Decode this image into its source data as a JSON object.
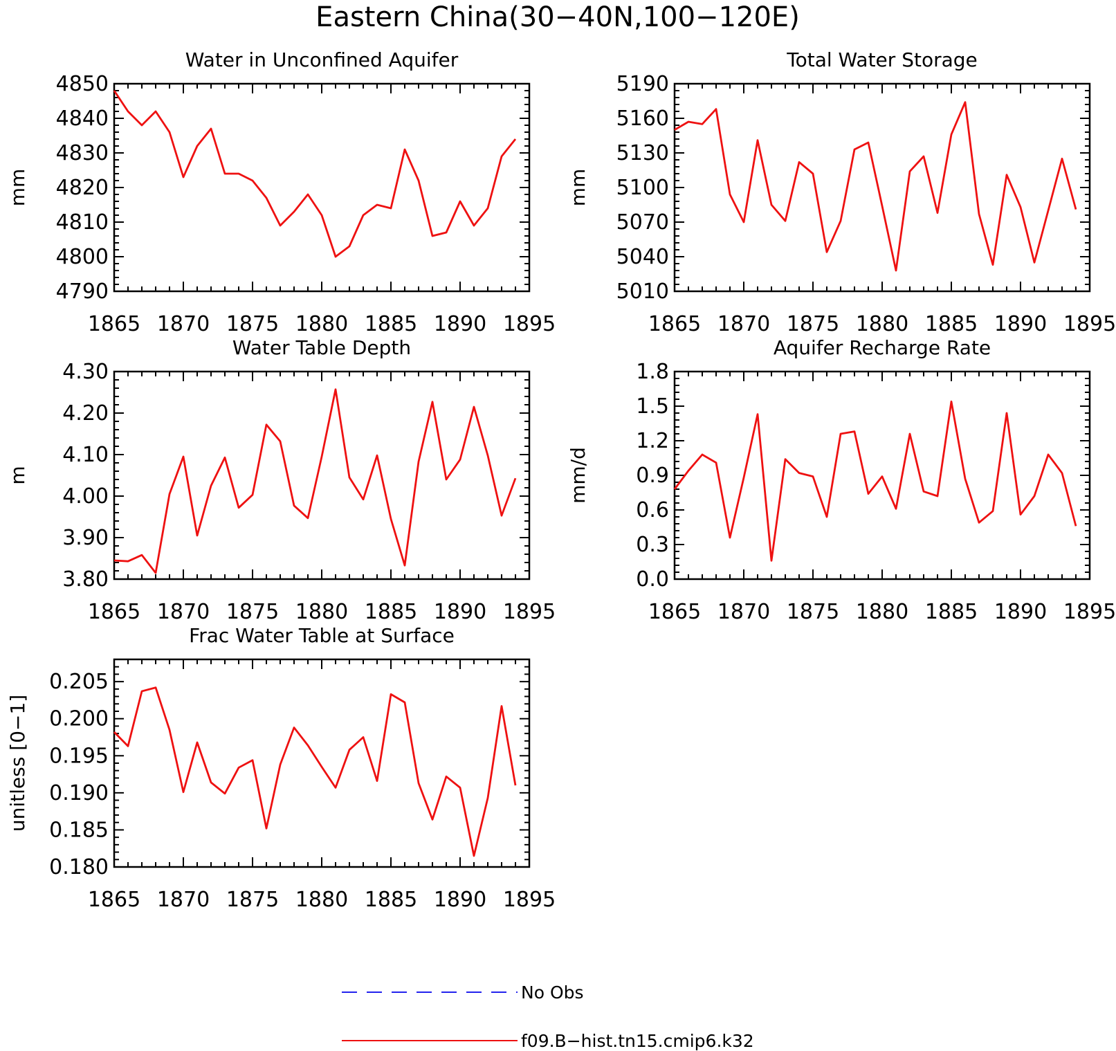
{
  "figure": {
    "title": "Eastern China(30−40N,100−120E)"
  },
  "legend": {
    "placement": "bottom-center",
    "entries": [
      {
        "label": "No Obs",
        "color": "#2222ee",
        "style": "dashed"
      },
      {
        "label": "f09.B−hist.tn15.cmip6.k32",
        "color": "#ee1111",
        "style": "solid"
      }
    ]
  },
  "colors": {
    "series": "#ee1111",
    "obs": "#2222ee",
    "axis": "#000000"
  },
  "chart_data": [
    {
      "type": "line",
      "title": "Water in Unconfined Aquifer",
      "ylabel": "mm",
      "xlabel": "",
      "xlim": [
        1865,
        1895
      ],
      "ylim": [
        4790,
        4850
      ],
      "xticks": [
        "1865",
        "1870",
        "1875",
        "1880",
        "1885",
        "1890",
        "1895"
      ],
      "yticks": [
        "4790",
        "4800",
        "4810",
        "4820",
        "4830",
        "4840",
        "4850"
      ],
      "x": [
        1865,
        1866,
        1867,
        1868,
        1869,
        1870,
        1871,
        1872,
        1873,
        1874,
        1875,
        1876,
        1877,
        1878,
        1879,
        1880,
        1881,
        1882,
        1883,
        1884,
        1885,
        1886,
        1887,
        1888,
        1889,
        1890,
        1891,
        1892,
        1893,
        1894
      ],
      "series": [
        {
          "name": "f09.B−hist.tn15.cmip6.k32",
          "values": [
            4848,
            4842,
            4838,
            4842,
            4836,
            4823,
            4832,
            4837,
            4824,
            4824,
            4822,
            4817,
            4809,
            4813,
            4818,
            4812,
            4800,
            4803,
            4812,
            4815,
            4814,
            4831,
            4822,
            4806,
            4807,
            4816,
            4809,
            4814,
            4829,
            4834
          ]
        }
      ]
    },
    {
      "type": "line",
      "title": "Total Water Storage",
      "ylabel": "mm",
      "xlabel": "",
      "xlim": [
        1865,
        1895
      ],
      "ylim": [
        5010,
        5190
      ],
      "xticks": [
        "1865",
        "1870",
        "1875",
        "1880",
        "1885",
        "1890",
        "1895"
      ],
      "yticks": [
        "5010",
        "5040",
        "5070",
        "5100",
        "5130",
        "5160",
        "5190"
      ],
      "x": [
        1865,
        1866,
        1867,
        1868,
        1869,
        1870,
        1871,
        1872,
        1873,
        1874,
        1875,
        1876,
        1877,
        1878,
        1879,
        1880,
        1881,
        1882,
        1883,
        1884,
        1885,
        1886,
        1887,
        1888,
        1889,
        1890,
        1891,
        1892,
        1893,
        1894
      ],
      "series": [
        {
          "name": "f09.B−hist.tn15.cmip6.k32",
          "values": [
            5150,
            5157,
            5155,
            5168,
            5094,
            5070,
            5141,
            5085,
            5071,
            5122,
            5112,
            5044,
            5071,
            5133,
            5139,
            5084,
            5028,
            5114,
            5127,
            5078,
            5146,
            5174,
            5077,
            5033,
            5111,
            5083,
            5035,
            5080,
            5125,
            5081
          ]
        }
      ]
    },
    {
      "type": "line",
      "title": "Water Table Depth",
      "ylabel": "m",
      "xlabel": "",
      "xlim": [
        1865,
        1895
      ],
      "ylim": [
        3.8,
        4.3
      ],
      "xticks": [
        "1865",
        "1870",
        "1875",
        "1880",
        "1885",
        "1890",
        "1895"
      ],
      "yticks": [
        "3.80",
        "3.90",
        "4.00",
        "4.10",
        "4.20",
        "4.30"
      ],
      "x": [
        1865,
        1866,
        1867,
        1868,
        1869,
        1870,
        1871,
        1872,
        1873,
        1874,
        1875,
        1876,
        1877,
        1878,
        1879,
        1880,
        1881,
        1882,
        1883,
        1884,
        1885,
        1886,
        1887,
        1888,
        1889,
        1890,
        1891,
        1892,
        1893,
        1894
      ],
      "series": [
        {
          "name": "f09.B−hist.tn15.cmip6.k32",
          "values": [
            3.845,
            3.843,
            3.858,
            3.815,
            4.005,
            4.095,
            3.905,
            4.025,
            4.093,
            3.972,
            4.003,
            4.172,
            4.132,
            3.977,
            3.947,
            4.095,
            4.257,
            4.045,
            3.992,
            4.098,
            3.945,
            3.833,
            4.083,
            4.227,
            4.04,
            4.088,
            4.215,
            4.098,
            3.953,
            4.043
          ]
        }
      ]
    },
    {
      "type": "line",
      "title": "Aquifer Recharge Rate",
      "ylabel": "mm/d",
      "xlabel": "",
      "xlim": [
        1865,
        1895
      ],
      "ylim": [
        0.0,
        1.8
      ],
      "xticks": [
        "1865",
        "1870",
        "1875",
        "1880",
        "1885",
        "1890",
        "1895"
      ],
      "yticks": [
        "0.0",
        "0.3",
        "0.6",
        "0.9",
        "1.2",
        "1.5",
        "1.8"
      ],
      "x": [
        1865,
        1866,
        1867,
        1868,
        1869,
        1870,
        1871,
        1872,
        1873,
        1874,
        1875,
        1876,
        1877,
        1878,
        1879,
        1880,
        1881,
        1882,
        1883,
        1884,
        1885,
        1886,
        1887,
        1888,
        1889,
        1890,
        1891,
        1892,
        1893,
        1894
      ],
      "series": [
        {
          "name": "f09.B−hist.tn15.cmip6.k32",
          "values": [
            0.78,
            0.94,
            1.08,
            1.01,
            0.36,
            0.88,
            1.43,
            0.16,
            1.04,
            0.92,
            0.89,
            0.54,
            1.26,
            1.28,
            0.74,
            0.89,
            0.61,
            1.26,
            0.76,
            0.72,
            1.54,
            0.87,
            0.49,
            0.59,
            1.44,
            0.56,
            0.72,
            1.08,
            0.92,
            0.46
          ]
        }
      ]
    },
    {
      "type": "line",
      "title": "Frac Water Table at Surface",
      "ylabel": "unitless [0−1]",
      "xlabel": "",
      "xlim": [
        1865,
        1895
      ],
      "ylim": [
        0.18,
        0.208
      ],
      "xticks": [
        "1865",
        "1870",
        "1875",
        "1880",
        "1885",
        "1890",
        "1895"
      ],
      "yticks": [
        "0.180",
        "0.185",
        "0.190",
        "0.195",
        "0.200",
        "0.205"
      ],
      "x": [
        1865,
        1866,
        1867,
        1868,
        1869,
        1870,
        1871,
        1872,
        1873,
        1874,
        1875,
        1876,
        1877,
        1878,
        1879,
        1880,
        1881,
        1882,
        1883,
        1884,
        1885,
        1886,
        1887,
        1888,
        1889,
        1890,
        1891,
        1892,
        1893,
        1894
      ],
      "series": [
        {
          "name": "f09.B−hist.tn15.cmip6.k32",
          "values": [
            0.1982,
            0.1963,
            0.2037,
            0.2042,
            0.1985,
            0.1901,
            0.1968,
            0.1914,
            0.1899,
            0.1934,
            0.1944,
            0.1852,
            0.1938,
            0.1988,
            0.1964,
            0.1935,
            0.1907,
            0.1958,
            0.1975,
            0.1916,
            0.2033,
            0.2022,
            0.1913,
            0.1864,
            0.1922,
            0.1907,
            0.1815,
            0.1893,
            0.2017,
            0.191
          ]
        }
      ]
    }
  ]
}
